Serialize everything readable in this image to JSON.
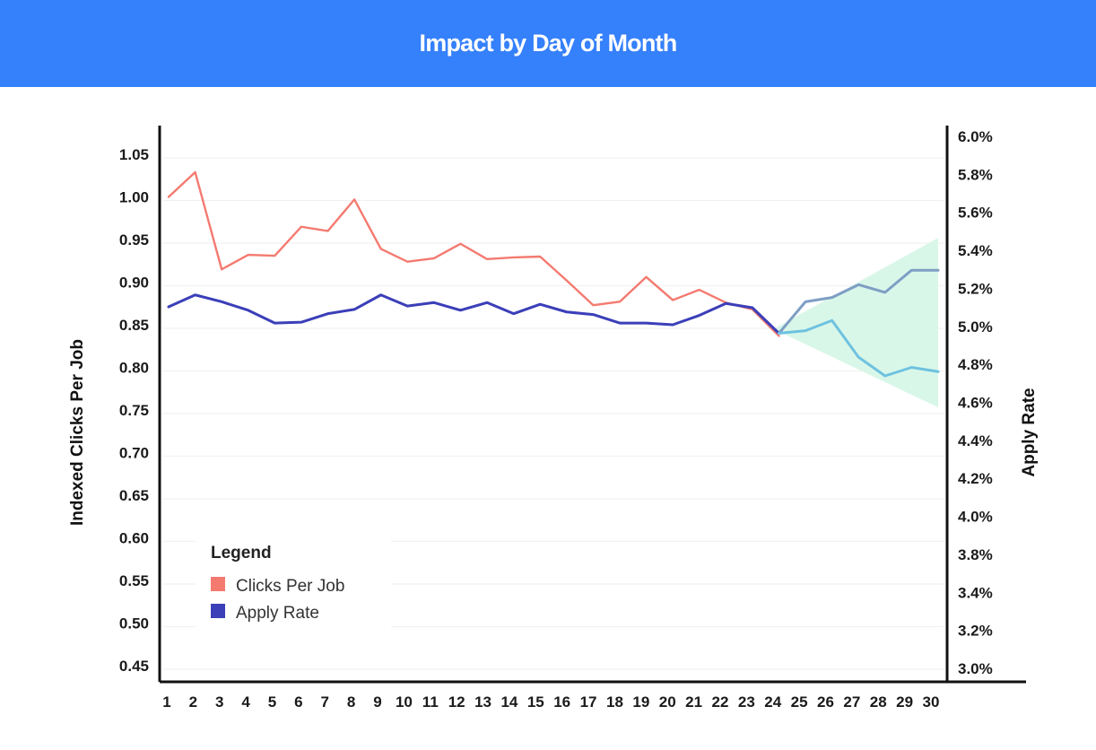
{
  "header": {
    "title": "Impact by Day of Month"
  },
  "colors": {
    "header_bg": "#3580fb",
    "clicks": "#f47a70",
    "apply": "#3b3fb8",
    "forecast_upper": "#7e9ec4",
    "forecast_lower": "#6ec2e0",
    "forecast_band": "#d7f7e8"
  },
  "chart_data": {
    "type": "line",
    "title": "Impact by Day of Month",
    "xlabel": "",
    "ylabel": "Indexed Clicks Per Job",
    "y2label": "Apply Rate",
    "x": [
      1,
      2,
      3,
      4,
      5,
      6,
      7,
      8,
      9,
      10,
      11,
      12,
      13,
      14,
      15,
      16,
      17,
      18,
      19,
      20,
      21,
      22,
      23,
      24,
      25,
      26,
      27,
      28,
      29,
      30
    ],
    "x_tick_labels": [
      "1",
      "2",
      "3",
      "4",
      "5",
      "6",
      "7",
      "8",
      "9",
      "10",
      "11",
      "12",
      "13",
      "14",
      "15",
      "16",
      "17",
      "18",
      "19",
      "20",
      "21",
      "22",
      "23",
      "24",
      "25",
      "26",
      "27",
      "28",
      "29",
      "30"
    ],
    "ylim": [
      0.43,
      1.08
    ],
    "y_tick_labels": [
      "1.05",
      "1.00",
      "0.95",
      "0.90",
      "0.85",
      "0.80",
      "0.75",
      "0.70",
      "0.65",
      "0.60",
      "0.55",
      "0.50",
      "0.45"
    ],
    "y_ticks": [
      1.05,
      1.0,
      0.95,
      0.9,
      0.85,
      0.8,
      0.75,
      0.7,
      0.65,
      0.6,
      0.55,
      0.5,
      0.45
    ],
    "y2_tick_labels": [
      "6.0%",
      "5.8%",
      "5.6%",
      "5.4%",
      "5.2%",
      "5.0%",
      "4.8%",
      "4.6%",
      "4.4%",
      "4.2%",
      "4.0%",
      "3.8%",
      "3.4%",
      "3.2%",
      "3.0%"
    ],
    "grid": true,
    "legend": {
      "title": "Legend",
      "position": "bottom-left",
      "entries": [
        {
          "label": "Clicks Per Job",
          "color": "#f47a70"
        },
        {
          "label": "Apply Rate",
          "color": "#3b3fb8"
        }
      ]
    },
    "series": [
      {
        "name": "Clicks Per Job",
        "axis": "left",
        "values": [
          1.0,
          1.029,
          0.915,
          0.932,
          0.931,
          0.965,
          0.96,
          0.997,
          0.939,
          0.924,
          0.928,
          0.945,
          0.927,
          0.929,
          0.93,
          0.902,
          0.873,
          0.877,
          0.906,
          0.879,
          0.891,
          0.876,
          0.868,
          0.837
        ]
      },
      {
        "name": "Apply Rate",
        "axis": "left",
        "values": [
          0.871,
          0.885,
          0.877,
          0.867,
          0.852,
          0.853,
          0.863,
          0.868,
          0.885,
          0.872,
          0.876,
          0.867,
          0.876,
          0.863,
          0.874,
          0.865,
          0.862,
          0.852,
          0.852,
          0.85,
          0.861,
          0.875,
          0.87,
          0.84
        ]
      },
      {
        "name": "Forecast Upper",
        "axis": "left",
        "start_day": 24,
        "values": [
          0.84,
          0.877,
          0.882,
          0.897,
          0.888,
          0.914,
          0.914
        ]
      },
      {
        "name": "Forecast Lower",
        "axis": "left",
        "start_day": 24,
        "values": [
          0.84,
          0.843,
          0.855,
          0.812,
          0.79,
          0.8,
          0.795
        ]
      }
    ],
    "forecast_band": {
      "start_day": 24,
      "start_value": 0.845,
      "end_upper": 0.952,
      "end_lower": 0.753
    }
  }
}
